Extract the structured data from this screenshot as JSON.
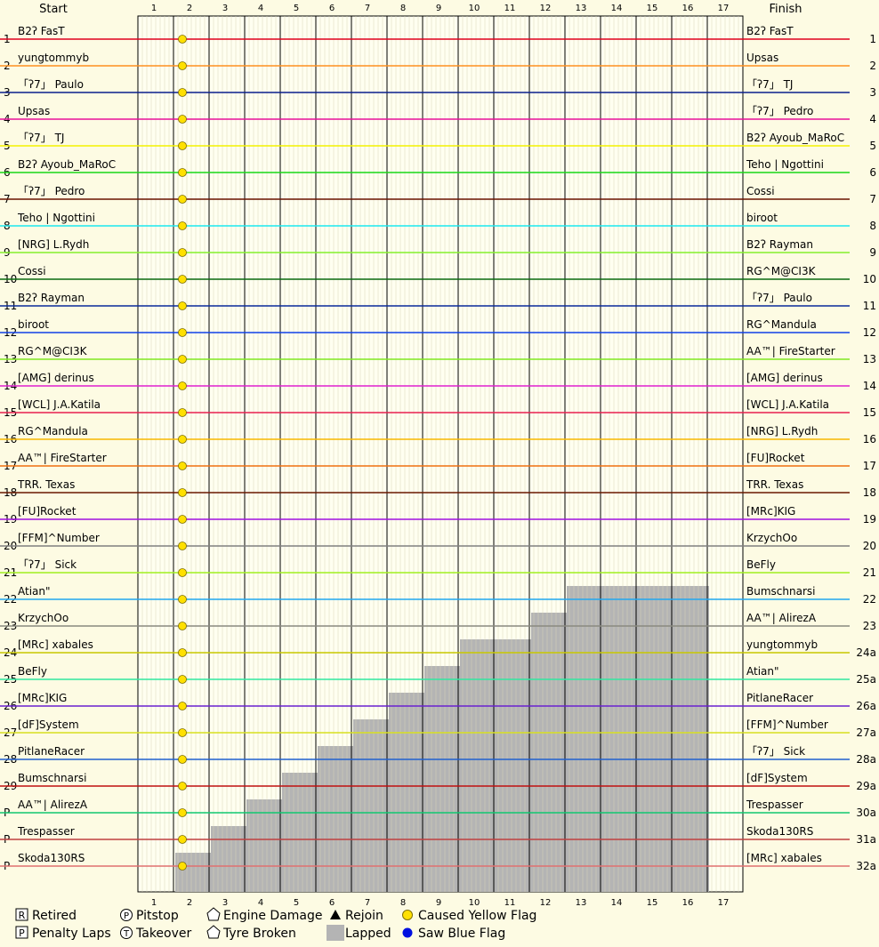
{
  "chart_data": {
    "type": "line",
    "title": "",
    "header": {
      "start": "Start",
      "finish": "Finish"
    },
    "laps": [
      "1",
      "2",
      "3",
      "4",
      "5",
      "6",
      "7",
      "8",
      "9",
      "10",
      "11",
      "12",
      "13",
      "14",
      "15",
      "16",
      "17"
    ],
    "start_pos_labels": [
      "1",
      "2",
      "3",
      "4",
      "5",
      "6",
      "7",
      "8",
      "9",
      "10",
      "11",
      "12",
      "13",
      "14",
      "15",
      "16",
      "17",
      "18",
      "19",
      "20",
      "21",
      "22",
      "23",
      "24",
      "25",
      "26",
      "27",
      "28",
      "29",
      "P",
      "P",
      "P"
    ],
    "finish_pos_labels": [
      "1",
      "2",
      "3",
      "4",
      "5",
      "6",
      "7",
      "8",
      "9",
      "10",
      "11",
      "12",
      "13",
      "14",
      "15",
      "16",
      "17",
      "18",
      "19",
      "20",
      "21",
      "22",
      "23",
      "24a",
      "25a",
      "26a",
      "27a",
      "28a",
      "29a",
      "30a",
      "31a",
      "32a"
    ],
    "drivers": [
      {
        "start": "B2ʔ FasT",
        "finish": "B2ʔ FasT",
        "color": "#e0001c"
      },
      {
        "start": "yungtommyb",
        "finish": "Upsas",
        "color": "#ff9020"
      },
      {
        "start": "「ʔ7」 Paulo",
        "finish": "「ʔ7」 TJ",
        "color": "#0a1f8c"
      },
      {
        "start": "Upsas",
        "finish": "「ʔ7」 Pedro",
        "color": "#e8109a"
      },
      {
        "start": "「ʔ7」 TJ",
        "finish": "B2ʔ Ayoub_MaRoC",
        "color": "#f4f200"
      },
      {
        "start": "B2ʔ Ayoub_MaRoC",
        "finish": "Teho | Ngottini",
        "color": "#18d818"
      },
      {
        "start": "「ʔ7」 Pedro",
        "finish": "Cossi",
        "color": "#6a1200"
      },
      {
        "start": "Teho | Ngottini",
        "finish": "biroot",
        "color": "#1ce8f0"
      },
      {
        "start": "[NRG] L.Rydh",
        "finish": "B2ʔ Rayman",
        "color": "#84f02c"
      },
      {
        "start": "Cossi",
        "finish": "RG^M@CI3K",
        "color": "#0a6a10"
      },
      {
        "start": "B2ʔ Rayman",
        "finish": "「ʔ7」 Paulo",
        "color": "#0a2a9a"
      },
      {
        "start": "biroot",
        "finish": "RG^Mandula",
        "color": "#1040e8"
      },
      {
        "start": "RG^M@CI3K",
        "finish": "AA™| FireStarter",
        "color": "#80e820"
      },
      {
        "start": "[AMG] derinus",
        "finish": "[AMG] derinus",
        "color": "#e020d0"
      },
      {
        "start": "[WCL] J.A.Katila",
        "finish": "[WCL] J.A.Katila",
        "color": "#e82050"
      },
      {
        "start": "RG^Mandula",
        "finish": "[NRG] L.Rydh",
        "color": "#f8b800"
      },
      {
        "start": "AA™| FireStarter",
        "finish": "[FU]Rocket",
        "color": "#f07010"
      },
      {
        "start": "TRR. Texas",
        "finish": "TRR. Texas",
        "color": "#6a1800"
      },
      {
        "start": "[FU]Rocket",
        "finish": "[MRc]KIG",
        "color": "#a010e0"
      },
      {
        "start": "[FFM]^Number",
        "finish": "KrzychOo",
        "color": "#808080"
      },
      {
        "start": "「ʔ7」 Sick",
        "finish": "BeFly",
        "color": "#a0f020"
      },
      {
        "start": "Atian\"",
        "finish": "Bumschnarsi",
        "color": "#20a8f0"
      },
      {
        "start": "KrzychOo",
        "finish": "AA™| AlirezA",
        "color": "#8a8a80"
      },
      {
        "start": "[MRc] xabales",
        "finish": "yungtommyb",
        "color": "#c8c800"
      },
      {
        "start": "BeFly",
        "finish": "Atian\"",
        "color": "#30e8a0"
      },
      {
        "start": "[MRc]KIG",
        "finish": "PitlaneRacer",
        "color": "#6a20d0"
      },
      {
        "start": "[dF]System",
        "finish": "[FFM]^Number",
        "color": "#d8e020"
      },
      {
        "start": "PitlaneRacer",
        "finish": "「ʔ7」 Sick",
        "color": "#2060d0"
      },
      {
        "start": "Bumschnarsi",
        "finish": "[dF]System",
        "color": "#c01010"
      },
      {
        "start": "AA™| AlirezA",
        "finish": "Trespasser",
        "color": "#10c870"
      },
      {
        "start": "Trespasser",
        "finish": "Skoda130RS",
        "color": "#c04040"
      },
      {
        "start": "Skoda130RS",
        "finish": "[MRc] xabales",
        "color": "#e07070"
      }
    ],
    "lapped_count_per_lap": [
      0,
      1,
      2,
      3,
      4,
      5,
      6,
      7,
      8,
      9,
      9,
      10,
      11,
      11,
      11,
      11,
      0
    ],
    "legend": [
      {
        "symbol": "R",
        "label": "Retired"
      },
      {
        "symbol": "P",
        "label": "Penalty Laps"
      },
      {
        "symbol": "P-circle",
        "label": "Pitstop"
      },
      {
        "symbol": "T-circle",
        "label": "Takeover"
      },
      {
        "symbol": "engine",
        "label": "Engine Damage"
      },
      {
        "symbol": "tyre",
        "label": "Tyre Broken"
      },
      {
        "symbol": "triangle",
        "label": "Rejoin"
      },
      {
        "symbol": "gray-box",
        "label": "Lapped"
      },
      {
        "symbol": "yellow-dot",
        "label": "Caused Yellow Flag"
      },
      {
        "symbol": "blue-dot",
        "label": "Saw Blue Flag"
      }
    ],
    "colors": {
      "background": "#fdfbe3",
      "plot_bg": "#fffff0",
      "lapped": "#b4b4b4",
      "yellow_flag": "#ffe000",
      "blue_flag": "#0010e0"
    }
  }
}
